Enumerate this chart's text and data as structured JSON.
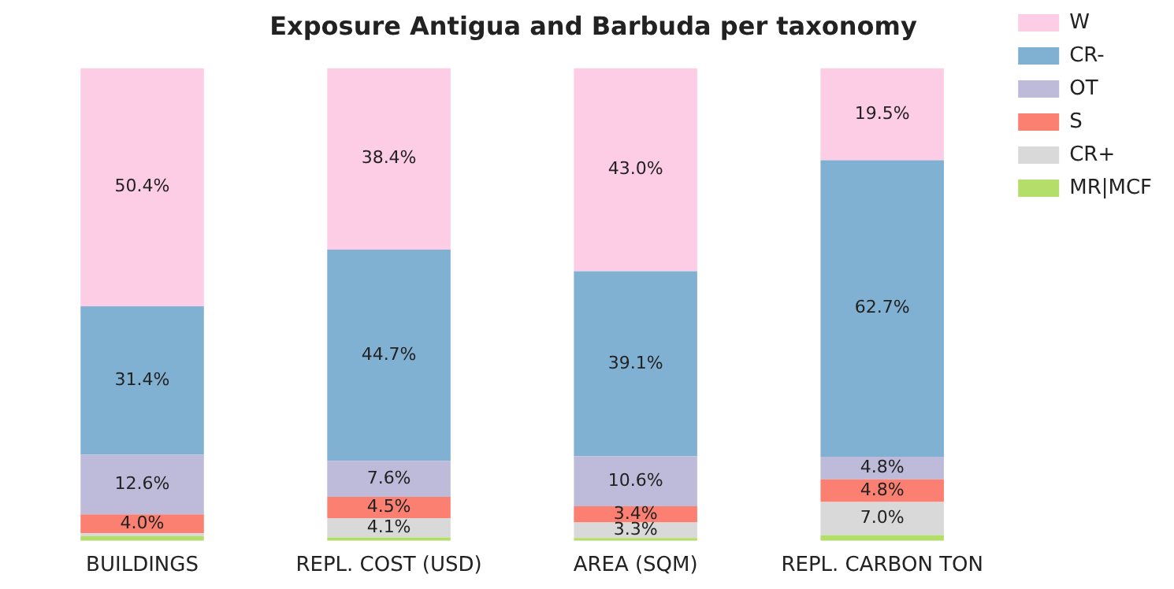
{
  "chart_data": {
    "type": "bar",
    "title": "Exposure Antigua and Barbuda per taxonomy",
    "categories": [
      "BUILDINGS",
      "REPL. COST (USD)",
      "AREA (SQM)",
      "REPL. CARBON TON"
    ],
    "stacked": true,
    "legend": "top right",
    "series": [
      {
        "name": "MR|MCF",
        "color": "#b3de69",
        "values": [
          1.0,
          0.7,
          0.6,
          1.2
        ],
        "value_labels": [
          null,
          null,
          null,
          null
        ]
      },
      {
        "name": "CR+",
        "color": "#d9d9d9",
        "values": [
          0.6,
          4.1,
          3.3,
          7.0
        ],
        "value_labels": [
          null,
          "4.1%",
          "3.3%",
          "7.0%"
        ]
      },
      {
        "name": "S",
        "color": "#fb8072",
        "values": [
          4.0,
          4.5,
          3.4,
          4.8
        ],
        "value_labels": [
          "4.0%",
          "4.5%",
          "3.4%",
          "4.8%"
        ]
      },
      {
        "name": "OT",
        "color": "#bebada",
        "values": [
          12.6,
          7.6,
          10.6,
          4.8
        ],
        "value_labels": [
          "12.6%",
          "7.6%",
          "10.6%",
          "4.8%"
        ]
      },
      {
        "name": "CR-",
        "color": "#80b1d3",
        "values": [
          31.4,
          44.7,
          39.1,
          62.7
        ],
        "value_labels": [
          "31.4%",
          "44.7%",
          "39.1%",
          "62.7%"
        ]
      },
      {
        "name": "W",
        "color": "#fccde5",
        "values": [
          50.4,
          38.4,
          43.0,
          19.5
        ],
        "value_labels": [
          "50.4%",
          "38.4%",
          "43.0%",
          "19.5%"
        ]
      }
    ]
  }
}
